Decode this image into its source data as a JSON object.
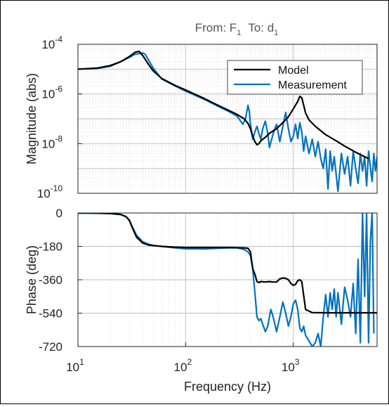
{
  "chart_data": [
    {
      "type": "line",
      "title": "From: F",
      "title_sub": "1",
      "title_to": "To: d",
      "title_to_sub": "1",
      "ylabel": "Magnitude (abs)",
      "xscale": "log",
      "yscale": "log",
      "xlim": [
        10,
        6000
      ],
      "ylim": [
        1e-10,
        0.0001
      ],
      "grid": true,
      "legend_position": "top-right",
      "yticks": [
        {
          "base": "10",
          "exp": "-4"
        },
        {
          "base": "10",
          "exp": "-6"
        },
        {
          "base": "10",
          "exp": "-8"
        },
        {
          "base": "10",
          "exp": "-10"
        }
      ],
      "series": [
        {
          "name": "Model",
          "color": "#000000",
          "x": [
            10,
            15,
            20,
            25,
            30,
            34,
            37,
            40,
            45,
            50,
            60,
            80,
            100,
            150,
            200,
            250,
            300,
            350,
            380,
            400,
            420,
            440,
            460,
            480,
            500,
            550,
            600,
            700,
            800,
            900,
            1000,
            1100,
            1150,
            1200,
            1250,
            1300,
            1400,
            1600,
            2000,
            2500,
            3000,
            4000,
            5000
          ],
          "y": [
            1e-05,
            1.1e-05,
            1.4e-05,
            2e-05,
            3.2e-05,
            4.8e-05,
            5.2e-05,
            3.5e-05,
            1.6e-05,
            8.5e-06,
            4.2e-06,
            2.2e-06,
            1.45e-06,
            6.5e-07,
            3.5e-07,
            2.2e-07,
            1.5e-07,
            1e-07,
            6.5e-08,
            4e-08,
            2e-08,
            1.2e-08,
            9e-09,
            1e-08,
            1.3e-08,
            1.8e-08,
            2.6e-08,
            4e-08,
            7e-08,
            1.2e-07,
            2.5e-07,
            5e-07,
            8e-07,
            7e-07,
            3.5e-07,
            1.7e-07,
            9e-08,
            5e-08,
            2.3e-08,
            1.3e-08,
            8e-09,
            4e-09,
            2.5e-09
          ]
        },
        {
          "name": "Measurement",
          "color": "#0072BD",
          "x": [
            10,
            15,
            20,
            25,
            30,
            34,
            37,
            40,
            42,
            45,
            50,
            60,
            80,
            100,
            150,
            200,
            250,
            300,
            340,
            360,
            380,
            390,
            400,
            420,
            440,
            460,
            480,
            500,
            520,
            550,
            580,
            600,
            650,
            700,
            750,
            800,
            850,
            900,
            950,
            1000,
            1050,
            1100,
            1150,
            1200,
            1250,
            1300,
            1400,
            1500,
            1600,
            1700,
            1800,
            1900,
            2000,
            2100,
            2200,
            2300,
            2400,
            2600,
            2800,
            3000,
            3200,
            3400,
            3600,
            3800,
            4000,
            4200,
            4400,
            4600,
            4800,
            5000,
            5200,
            5400,
            5600,
            5800,
            6000
          ],
          "y": [
            1e-05,
            1.05e-05,
            1.3e-05,
            2e-05,
            3e-05,
            4e-05,
            4.2e-05,
            4.5e-05,
            4e-05,
            2.4e-05,
            1.1e-05,
            4e-06,
            2.1e-06,
            1.3e-06,
            6e-07,
            3.2e-07,
            2e-07,
            1.3e-07,
            6e-08,
            1e-07,
            3.5e-07,
            2e-07,
            6e-08,
            1.5e-08,
            3e-08,
            5e-08,
            2.5e-08,
            1.5e-08,
            4e-08,
            8e-08,
            2.5e-08,
            7e-09,
            2.5e-08,
            6e-08,
            1.2e-08,
            5e-08,
            1.8e-07,
            4e-08,
            1.2e-08,
            2e-08,
            6e-08,
            1.6e-08,
            7e-08,
            3e-08,
            5e-09,
            2e-08,
            4e-09,
            1.5e-08,
            3e-09,
            1.2e-08,
            2.5e-09,
            1e-09,
            6e-09,
            1.5e-10,
            5e-09,
            8e-10,
            3e-09,
            1.2e-10,
            4e-09,
            6e-10,
            3e-09,
            2e-10,
            5e-09,
            1e-09,
            2.5e-10,
            4e-09,
            8e-10,
            3e-09,
            2e-10,
            5e-09,
            1.1e-09,
            3e-10,
            4e-09,
            8e-10,
            3e-09
          ]
        }
      ]
    },
    {
      "type": "line",
      "ylabel": "Phase (deg)",
      "xlabel": "Frequency  (Hz)",
      "xscale": "log",
      "xlim": [
        10,
        6000
      ],
      "ylim": [
        -720,
        0
      ],
      "grid": true,
      "yticks": [
        "0",
        "-180",
        "-360",
        "-540",
        "-720"
      ],
      "xticks": [
        {
          "base": "10",
          "exp": "1"
        },
        {
          "base": "10",
          "exp": "2"
        },
        {
          "base": "10",
          "exp": "3"
        }
      ],
      "series": [
        {
          "name": "Model",
          "color": "#000000",
          "x": [
            10,
            15,
            20,
            25,
            28,
            30,
            32,
            35,
            40,
            45,
            50,
            60,
            80,
            100,
            150,
            200,
            250,
            300,
            350,
            380,
            400,
            420,
            440,
            460,
            480,
            500,
            550,
            600,
            650,
            700,
            750,
            800,
            850,
            900,
            950,
            1000,
            1050,
            1100,
            1150,
            1200,
            1300,
            1500,
            2000,
            2500,
            3000,
            4000,
            5000,
            6000
          ],
          "y": [
            0,
            -1,
            -3,
            -8,
            -20,
            -40,
            -80,
            -130,
            -162,
            -172,
            -176,
            -180,
            -184,
            -186,
            -186,
            -186,
            -186,
            -187,
            -188,
            -190,
            -210,
            -300,
            -330,
            -370,
            -375,
            -370,
            -372,
            -370,
            -372,
            -372,
            -355,
            -350,
            -352,
            -360,
            -380,
            -390,
            -385,
            -365,
            -360,
            -370,
            -520,
            -537,
            -538,
            -538,
            -538,
            -538,
            -538,
            -538
          ]
        },
        {
          "name": "Measurement",
          "color": "#0072BD",
          "x": [
            10,
            15,
            20,
            25,
            28,
            30,
            32,
            35,
            40,
            45,
            50,
            60,
            80,
            100,
            150,
            200,
            250,
            300,
            340,
            360,
            380,
            400,
            420,
            440,
            460,
            480,
            500,
            520,
            550,
            580,
            600,
            620,
            650,
            700,
            750,
            800,
            850,
            900,
            950,
            1000,
            1050,
            1100,
            1150,
            1200,
            1250,
            1300,
            1400,
            1500,
            1600,
            1700,
            1800,
            1900,
            2000,
            2100,
            2200,
            2300,
            2400,
            2500,
            2600,
            2800,
            3000,
            3200,
            3400,
            3600,
            3800,
            4000,
            4200,
            4400,
            4600,
            4800,
            5000,
            5200,
            5400,
            5600
          ],
          "y": [
            0,
            -1,
            -3,
            -8,
            -20,
            -38,
            -75,
            -120,
            -155,
            -168,
            -175,
            -180,
            -188,
            -193,
            -194,
            -190,
            -188,
            -188,
            -195,
            -200,
            -210,
            -230,
            -300,
            -430,
            -560,
            -580,
            -570,
            -600,
            -640,
            -610,
            -560,
            -520,
            -560,
            -640,
            -560,
            -480,
            -540,
            -610,
            -560,
            -490,
            -470,
            -520,
            -620,
            -640,
            -610,
            -660,
            -690,
            -720,
            -700,
            -650,
            -720,
            -560,
            -440,
            -560,
            -430,
            -520,
            -410,
            -560,
            -430,
            -600,
            -400,
            -470,
            -560,
            -380,
            -650,
            -250,
            -700,
            0,
            -450,
            0,
            -700,
            -150,
            0,
            -650
          ]
        }
      ]
    }
  ]
}
